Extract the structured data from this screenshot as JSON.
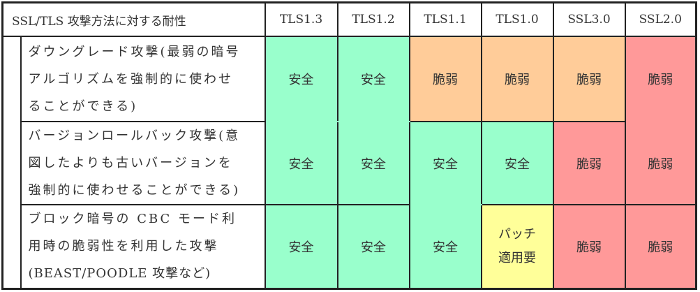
{
  "header": {
    "title": "SSL/TLS 攻撃方法に対する耐性",
    "versions": [
      "TLS1.3",
      "TLS1.2",
      "TLS1.1",
      "TLS1.0",
      "SSL3.0",
      "SSL2.0"
    ]
  },
  "colors": {
    "safe": "#99ffcc",
    "vulnerable_orange": "#ffcc99",
    "vulnerable_red": "#ff9999",
    "patch": "#ffff99"
  },
  "rows": [
    {
      "label_lines": [
        "ダウングレード攻撃(最弱の暗号",
        "アルゴリズムを強制的に使わせ",
        "ることができる)"
      ],
      "cells": [
        "安全",
        "安全",
        "脆弱",
        "脆弱",
        "脆弱",
        "脆弱"
      ]
    },
    {
      "label_lines": [
        "バージョンロールバック攻撃(意",
        "図したよりも古いバージョンを",
        "強制的に使わせることができる)"
      ],
      "cells": [
        "安全",
        "安全",
        "安全",
        "安全",
        "脆弱",
        "脆弱"
      ]
    },
    {
      "label_lines": [
        "ブロック暗号の CBC モード利",
        "用時の脆弱性を利用した攻撃",
        "(BEAST/POODLE 攻撃など)"
      ],
      "cells": [
        "安全",
        "安全",
        "安全",
        "パッチ",
        "脆弱",
        "脆弱"
      ],
      "patch_line2": "適用要"
    }
  ]
}
